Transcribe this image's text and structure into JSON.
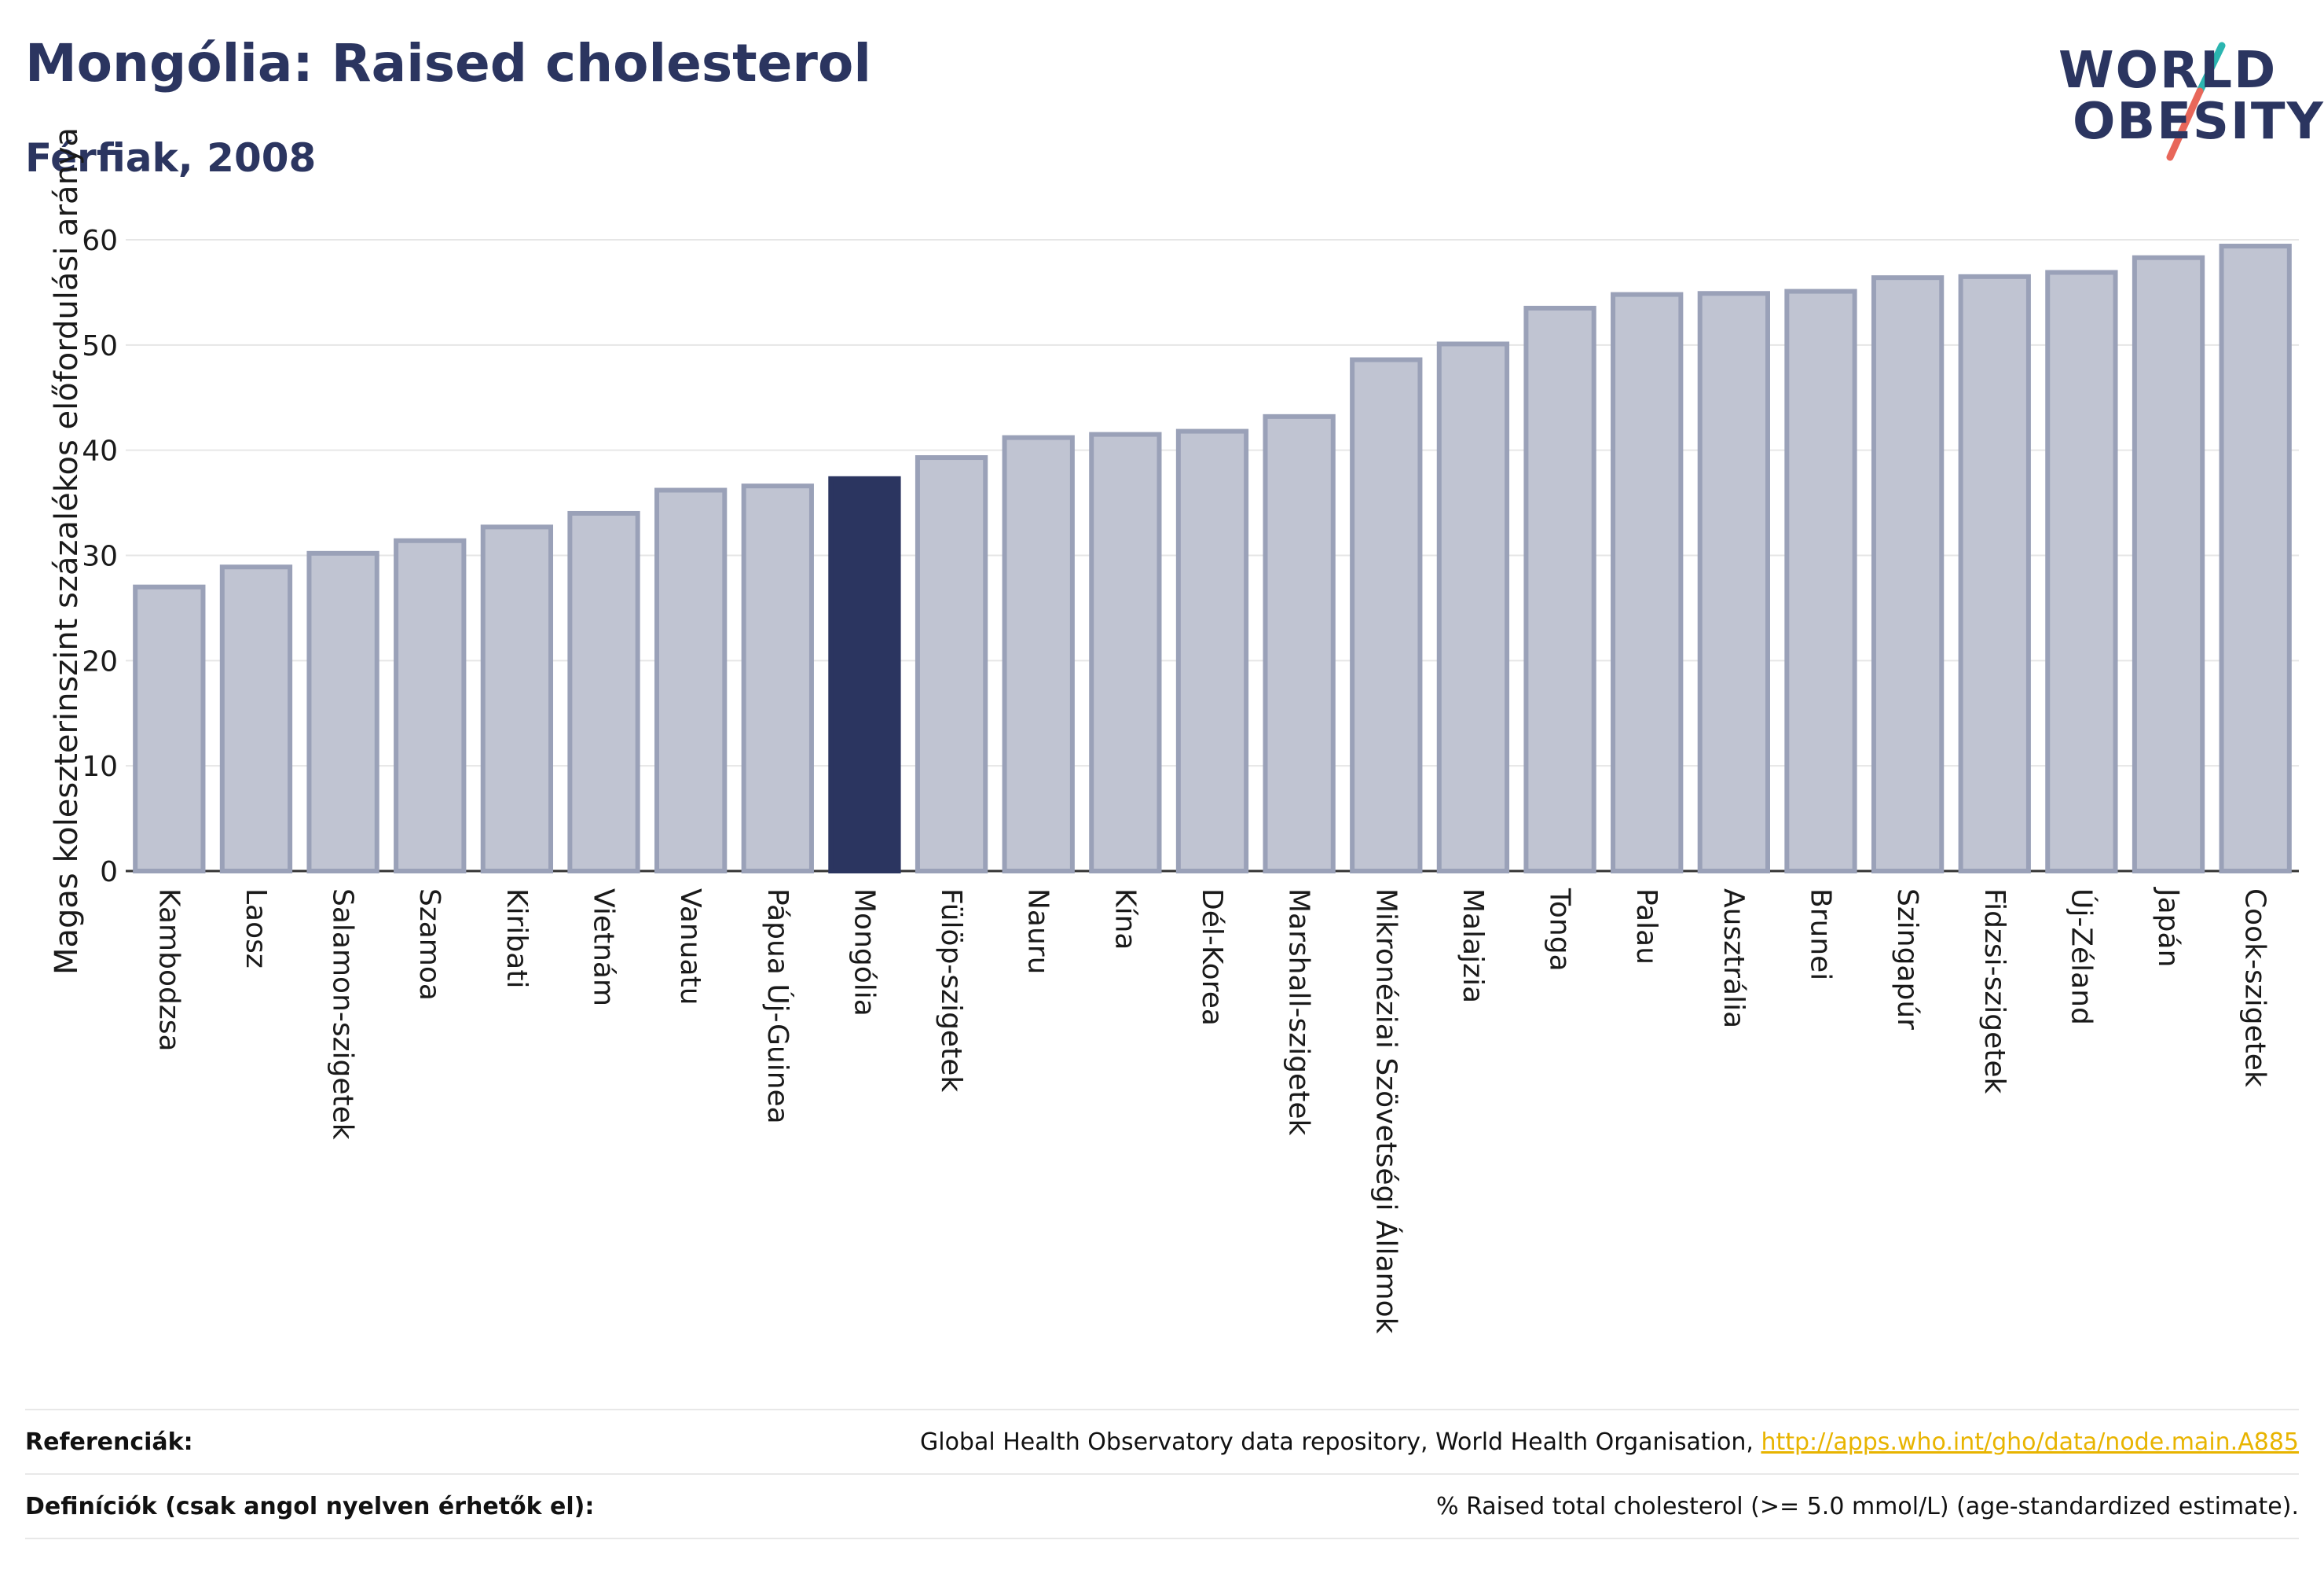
{
  "header": {
    "title": "Mongólia: Raised cholesterol",
    "subtitle": "Férfiak, 2008"
  },
  "logo": {
    "line1": "WORLD",
    "line2": "OBESITY",
    "slash_colors": [
      "#2bb5b0",
      "#e8675a"
    ]
  },
  "colors": {
    "bar": "#c0c4d2",
    "bar_border": "#9aa1b8",
    "highlight": "#2b3560",
    "grid": "#e6e6e6",
    "axis": "#333333"
  },
  "chart_data": {
    "type": "bar",
    "ylabel": "Magas koleszterinszint százalékos előfordulási aránya",
    "ylim": [
      0,
      60
    ],
    "yticks": [
      0,
      10,
      20,
      30,
      40,
      50,
      60
    ],
    "grid": true,
    "highlight": "Mongólia",
    "categories": [
      "Kambodzsa",
      "Laosz",
      "Salamon-szigetek",
      "Szamoa",
      "Kiribati",
      "Vietnám",
      "Vanuatu",
      "Pápua Új-Guinea",
      "Mongólia",
      "Fülöp-szigetek",
      "Nauru",
      "Kína",
      "Dél-Korea",
      "Marshall-szigetek",
      "Mikronéziai Szövetségi Államok",
      "Malajzia",
      "Tonga",
      "Palau",
      "Ausztrália",
      "Brunei",
      "Szingapúr",
      "Fidzsi-szigetek",
      "Új-Zéland",
      "Japán",
      "Cook-szigetek"
    ],
    "values": [
      27.0,
      28.9,
      30.2,
      31.4,
      32.7,
      34.0,
      36.2,
      36.6,
      37.3,
      39.3,
      41.2,
      41.5,
      41.8,
      43.2,
      48.6,
      50.1,
      53.5,
      54.8,
      54.9,
      55.1,
      56.4,
      56.5,
      56.9,
      58.3,
      59.4
    ]
  },
  "footer": {
    "references_label": "Referenciák:",
    "references_text": "Global Health Observatory data repository, World Health Organisation,",
    "references_link": "http://apps.who.int/gho/data/node.main.A885",
    "definitions_label": "Definíciók (csak angol nyelven érhetők el):",
    "definitions_text": "% Raised total cholesterol (>= 5.0 mmol/L) (age-standardized estimate)."
  }
}
